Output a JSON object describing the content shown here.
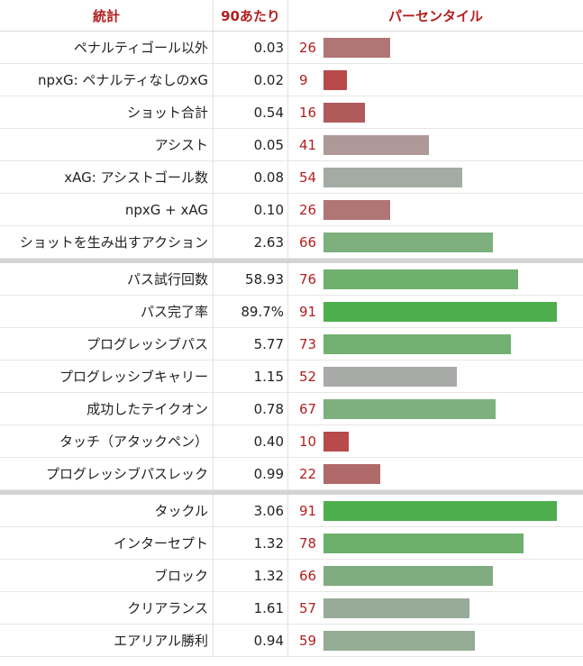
{
  "header": {
    "stat": "統計",
    "per90": "90あたり",
    "percentile": "パーセンタイル"
  },
  "groups": [
    {
      "rows": [
        {
          "stat": "ペナルティゴール以外",
          "value": "0.03",
          "percentile": 26,
          "color": "#b07575"
        },
        {
          "stat": "npxG: ペナルティなしのxG",
          "value": "0.02",
          "percentile": 9,
          "color": "#b84a4a"
        },
        {
          "stat": "ショット合計",
          "value": "0.54",
          "percentile": 16,
          "color": "#b05a5a"
        },
        {
          "stat": "アシスト",
          "value": "0.05",
          "percentile": 41,
          "color": "#ae9898"
        },
        {
          "stat": "xAG: アシストゴール数",
          "value": "0.08",
          "percentile": 54,
          "color": "#a4aba4"
        },
        {
          "stat": "npxG + xAG",
          "value": "0.10",
          "percentile": 26,
          "color": "#b07575"
        },
        {
          "stat": "ショットを生み出すアクション",
          "value": "2.63",
          "percentile": 66,
          "color": "#7db07d"
        }
      ]
    },
    {
      "rows": [
        {
          "stat": "パス試行回数",
          "value": "58.93",
          "percentile": 76,
          "color": "#6fb06f"
        },
        {
          "stat": "パス完了率",
          "value": "89.7%",
          "percentile": 91,
          "color": "#4caf4c"
        },
        {
          "stat": "プログレッシブパス",
          "value": "5.77",
          "percentile": 73,
          "color": "#72b072"
        },
        {
          "stat": "プログレッシブキャリー",
          "value": "1.15",
          "percentile": 52,
          "color": "#a8aaa8"
        },
        {
          "stat": "成功したテイクオン",
          "value": "0.78",
          "percentile": 67,
          "color": "#7db07d"
        },
        {
          "stat": "タッチ（アタックペン）",
          "value": "0.40",
          "percentile": 10,
          "color": "#b84a4a"
        },
        {
          "stat": "プログレッシブパスレック",
          "value": "0.99",
          "percentile": 22,
          "color": "#b06a6a"
        }
      ]
    },
    {
      "rows": [
        {
          "stat": "タックル",
          "value": "3.06",
          "percentile": 91,
          "color": "#4caf4c"
        },
        {
          "stat": "インターセプト",
          "value": "1.32",
          "percentile": 78,
          "color": "#6cb06c"
        },
        {
          "stat": "ブロック",
          "value": "1.32",
          "percentile": 66,
          "color": "#80ad80"
        },
        {
          "stat": "クリアランス",
          "value": "1.61",
          "percentile": 57,
          "color": "#98ab98"
        },
        {
          "stat": "エアリアル勝利",
          "value": "0.94",
          "percentile": 59,
          "color": "#95ac95"
        }
      ]
    }
  ]
}
